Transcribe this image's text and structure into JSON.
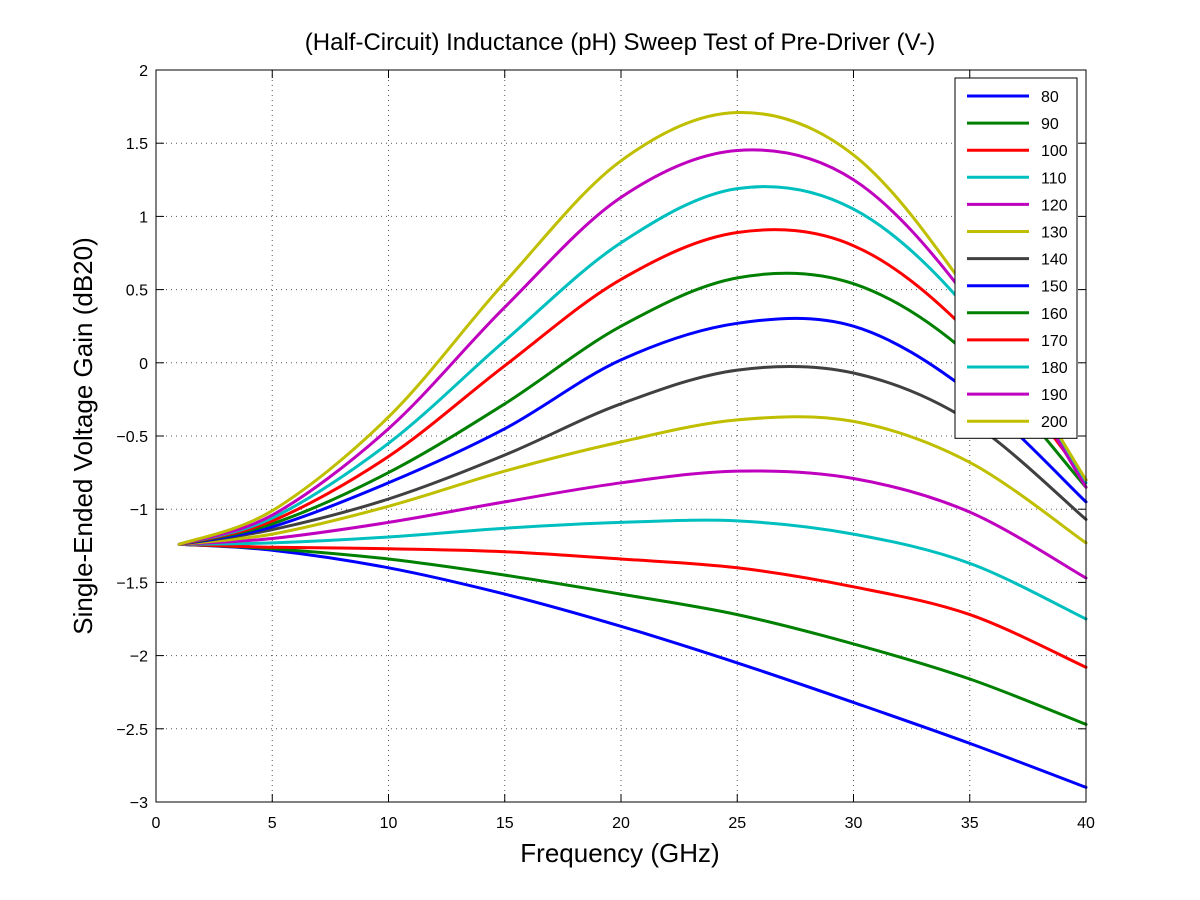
{
  "chart_data": {
    "type": "line",
    "title": "(Half-Circuit) Inductance (pH) Sweep Test of Pre-Driver (V-)",
    "xlabel": "Frequency (GHz)",
    "ylabel": "Single-Ended Voltage Gain (dB20)",
    "xlim": [
      0,
      40
    ],
    "ylim": [
      -3,
      2
    ],
    "xticks": [
      0,
      5,
      10,
      15,
      20,
      25,
      30,
      35,
      40
    ],
    "yticks": [
      -3,
      -2.5,
      -2,
      -1.5,
      -1,
      -0.5,
      0,
      0.5,
      1,
      1.5,
      2
    ],
    "xtick_labels": [
      "0",
      "5",
      "10",
      "15",
      "20",
      "25",
      "30",
      "35",
      "40"
    ],
    "ytick_labels": [
      "−3",
      "−2.5",
      "−2",
      "−1.5",
      "−1",
      "−0.5",
      "0",
      "0.5",
      "1",
      "1.5",
      "2"
    ],
    "grid": true,
    "legend_position": "top-right",
    "x": [
      1,
      5,
      10,
      15,
      20,
      25,
      30,
      35,
      40
    ],
    "series": [
      {
        "name": "80",
        "color": "#0000ff",
        "values": [
          -1.24,
          -1.28,
          -1.4,
          -1.58,
          -1.8,
          -2.05,
          -2.32,
          -2.6,
          -2.9
        ]
      },
      {
        "name": "90",
        "color": "#008000",
        "values": [
          -1.24,
          -1.27,
          -1.34,
          -1.45,
          -1.58,
          -1.72,
          -1.92,
          -2.16,
          -2.47
        ]
      },
      {
        "name": "100",
        "color": "#ff0000",
        "values": [
          -1.24,
          -1.26,
          -1.27,
          -1.29,
          -1.34,
          -1.4,
          -1.53,
          -1.72,
          -2.08
        ]
      },
      {
        "name": "110",
        "color": "#00bfbf",
        "values": [
          -1.24,
          -1.23,
          -1.19,
          -1.13,
          -1.09,
          -1.08,
          -1.17,
          -1.37,
          -1.75
        ]
      },
      {
        "name": "120",
        "color": "#bf00bf",
        "values": [
          -1.24,
          -1.2,
          -1.09,
          -0.95,
          -0.82,
          -0.74,
          -0.79,
          -1.02,
          -1.47
        ]
      },
      {
        "name": "130",
        "color": "#bfbf00",
        "values": [
          -1.24,
          -1.17,
          -0.98,
          -0.74,
          -0.54,
          -0.39,
          -0.4,
          -0.68,
          -1.23
        ]
      },
      {
        "name": "140",
        "color": "#404040",
        "values": [
          -1.24,
          -1.14,
          -0.93,
          -0.63,
          -0.28,
          -0.05,
          -0.07,
          -0.4,
          -1.07
        ]
      },
      {
        "name": "150",
        "color": "#0000ff",
        "values": [
          -1.24,
          -1.12,
          -0.82,
          -0.45,
          0.02,
          0.27,
          0.25,
          -0.2,
          -0.95
        ]
      },
      {
        "name": "160",
        "color": "#008000",
        "values": [
          -1.24,
          -1.1,
          -0.75,
          -0.28,
          0.25,
          0.58,
          0.54,
          0.05,
          -0.85
        ]
      },
      {
        "name": "170",
        "color": "#ff0000",
        "values": [
          -1.24,
          -1.08,
          -0.64,
          -0.02,
          0.57,
          0.89,
          0.8,
          0.2,
          -0.8
        ]
      },
      {
        "name": "180",
        "color": "#00bfbf",
        "values": [
          -1.24,
          -1.06,
          -0.55,
          0.15,
          0.82,
          1.19,
          1.05,
          0.35,
          -0.82
        ]
      },
      {
        "name": "190",
        "color": "#bf00bf",
        "values": [
          -1.24,
          -1.04,
          -0.45,
          0.38,
          1.13,
          1.45,
          1.25,
          0.42,
          -0.85
        ]
      },
      {
        "name": "200",
        "color": "#bfbf00",
        "values": [
          -1.24,
          -1.01,
          -0.37,
          0.55,
          1.38,
          1.71,
          1.42,
          0.47,
          -0.8
        ]
      }
    ]
  }
}
